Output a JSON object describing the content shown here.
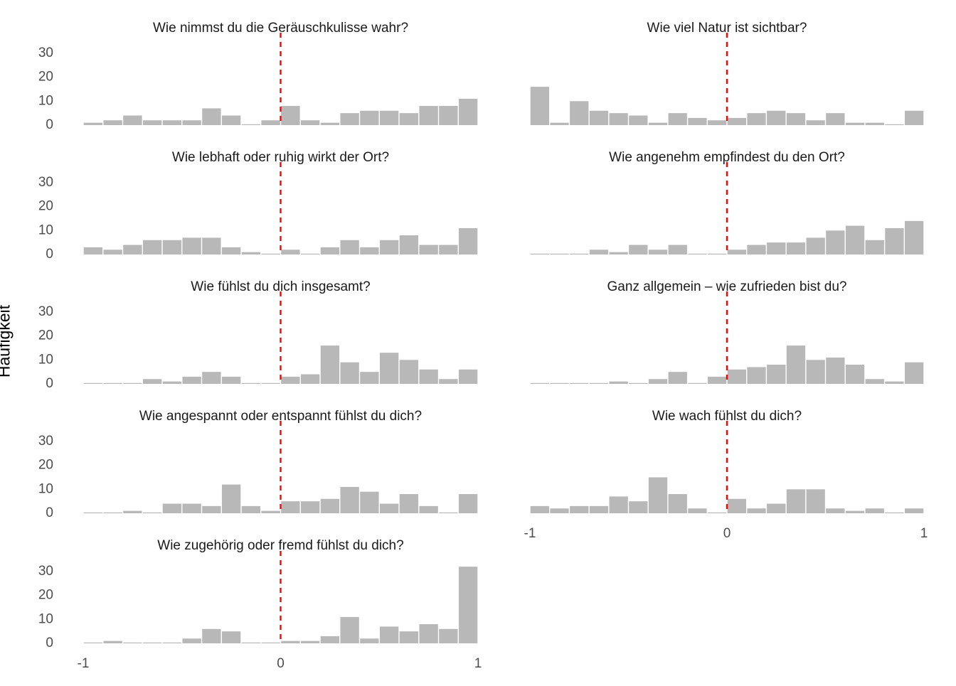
{
  "figure": {
    "ylabel": "Häufigkeit"
  },
  "chart_data": {
    "type": "bar",
    "ylabel": "Häufigkeit",
    "x_ticks": [
      "-1",
      "0",
      "1"
    ],
    "y_ticks": [
      "0",
      "10",
      "20",
      "30"
    ],
    "xlim": [
      -1,
      1
    ],
    "ylim": [
      0,
      35
    ],
    "reference_line_x": 0,
    "reference_line_color": "#ff0000",
    "bar_color": "#b8b8b8",
    "grid": false,
    "bin_width": 0.1,
    "panels": [
      {
        "title": "Wie nimmst du die Geräuschkulisse wahr?",
        "values": [
          1,
          2,
          4,
          2,
          2,
          2,
          7,
          4,
          0,
          2,
          8,
          2,
          1,
          5,
          6,
          6,
          5,
          8,
          8,
          11
        ]
      },
      {
        "title": "Wie viel Natur ist sichtbar?",
        "values": [
          16,
          1,
          10,
          6,
          5,
          4,
          1,
          5,
          3,
          2,
          3,
          5,
          6,
          5,
          2,
          5,
          1,
          1,
          0,
          6
        ]
      },
      {
        "title": "Wie lebhaft oder ruhig wirkt der Ort?",
        "values": [
          3,
          2,
          4,
          6,
          6,
          7,
          7,
          3,
          1,
          0,
          2,
          0,
          3,
          6,
          3,
          6,
          8,
          4,
          4,
          11
        ]
      },
      {
        "title": "Wie angenehm empfindest du den Ort?",
        "values": [
          0,
          0,
          0,
          2,
          1,
          4,
          2,
          4,
          0,
          0,
          2,
          4,
          5,
          5,
          7,
          10,
          12,
          6,
          11,
          14
        ]
      },
      {
        "title": "Wie fühlst du dich insgesamt?",
        "values": [
          0,
          0,
          0,
          2,
          1,
          3,
          5,
          3,
          0,
          0,
          3,
          4,
          16,
          9,
          5,
          13,
          10,
          6,
          2,
          6
        ]
      },
      {
        "title": "Ganz allgemein – wie zufrieden bist du?",
        "values": [
          0,
          0,
          0,
          0,
          1,
          0,
          2,
          5,
          0,
          3,
          6,
          7,
          8,
          16,
          10,
          11,
          8,
          2,
          1,
          9
        ]
      },
      {
        "title": "Wie angespannt oder entspannt fühlst du dich?",
        "values": [
          0,
          0,
          1,
          0,
          4,
          4,
          3,
          12,
          3,
          1,
          5,
          5,
          6,
          11,
          9,
          4,
          8,
          3,
          0,
          8
        ]
      },
      {
        "title": "Wie wach fühlst du dich?",
        "values": [
          3,
          2,
          3,
          3,
          7,
          5,
          15,
          8,
          2,
          0,
          6,
          2,
          4,
          10,
          10,
          2,
          1,
          2,
          0,
          2
        ]
      },
      {
        "title": "Wie zugehörig oder fremd fühlst du dich?",
        "values": [
          0,
          1,
          0,
          0,
          0,
          2,
          6,
          5,
          0,
          0,
          1,
          1,
          3,
          11,
          2,
          7,
          5,
          8,
          6,
          32
        ]
      }
    ]
  }
}
